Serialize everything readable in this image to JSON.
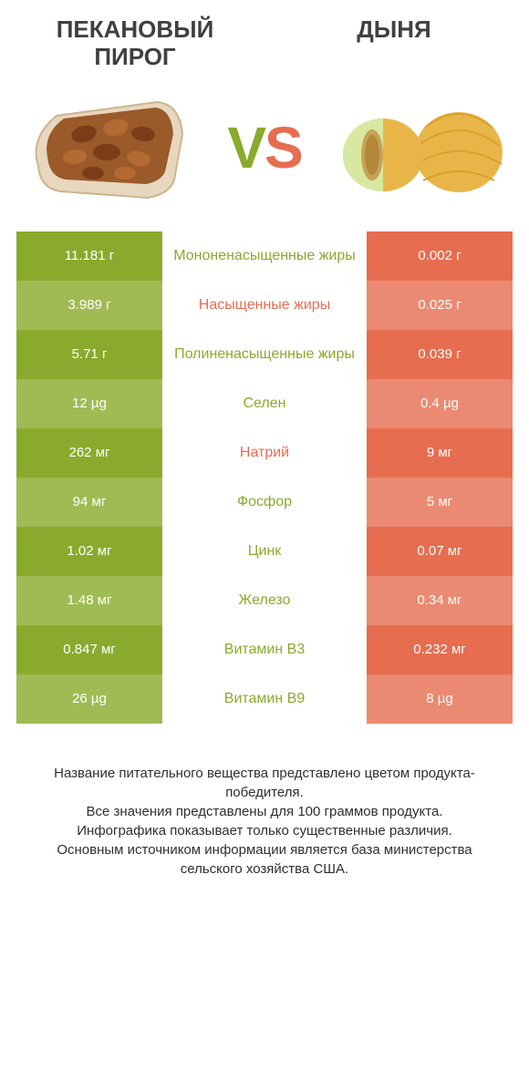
{
  "header": {
    "left_title": "ПЕКАНОВЫЙ ПИРОГ",
    "right_title": "ДЫНЯ",
    "vs_v": "V",
    "vs_s": "S"
  },
  "colors": {
    "green": "#8aaa2d",
    "green_dim": "#a0bb54",
    "orange": "#e66d4f",
    "orange_dim": "#eb8a72",
    "text": "#333333",
    "bg": "#ffffff"
  },
  "table": {
    "type": "comparison-table",
    "rows": [
      {
        "left": "11.181 г",
        "label": "Мононенасыщенные жиры",
        "right": "0.002 г",
        "winner": "left",
        "shade": "normal"
      },
      {
        "left": "3.989 г",
        "label": "Насыщенные жиры",
        "right": "0.025 г",
        "winner": "right",
        "shade": "dim"
      },
      {
        "left": "5.71 г",
        "label": "Полиненасыщенные жиры",
        "right": "0.039 г",
        "winner": "left",
        "shade": "normal"
      },
      {
        "left": "12 µg",
        "label": "Селен",
        "right": "0.4 µg",
        "winner": "left",
        "shade": "dim"
      },
      {
        "left": "262 мг",
        "label": "Натрий",
        "right": "9 мг",
        "winner": "right",
        "shade": "normal"
      },
      {
        "left": "94 мг",
        "label": "Фосфор",
        "right": "5 мг",
        "winner": "left",
        "shade": "dim"
      },
      {
        "left": "1.02 мг",
        "label": "Цинк",
        "right": "0.07 мг",
        "winner": "left",
        "shade": "normal"
      },
      {
        "left": "1.48 мг",
        "label": "Железо",
        "right": "0.34 мг",
        "winner": "left",
        "shade": "dim"
      },
      {
        "left": "0.847 мг",
        "label": "Витамин B3",
        "right": "0.232 мг",
        "winner": "left",
        "shade": "normal"
      },
      {
        "left": "26 µg",
        "label": "Витамин B9",
        "right": "8 µg",
        "winner": "left",
        "shade": "dim"
      }
    ]
  },
  "footer": {
    "line1": "Название питательного вещества представлено цветом продукта-победителя.",
    "line2": "Все значения представлены для 100 граммов продукта.",
    "line3": "Инфографика показывает только существенные различия.",
    "line4": "Основным источником информации является база министерства сельского хозяйства США."
  }
}
